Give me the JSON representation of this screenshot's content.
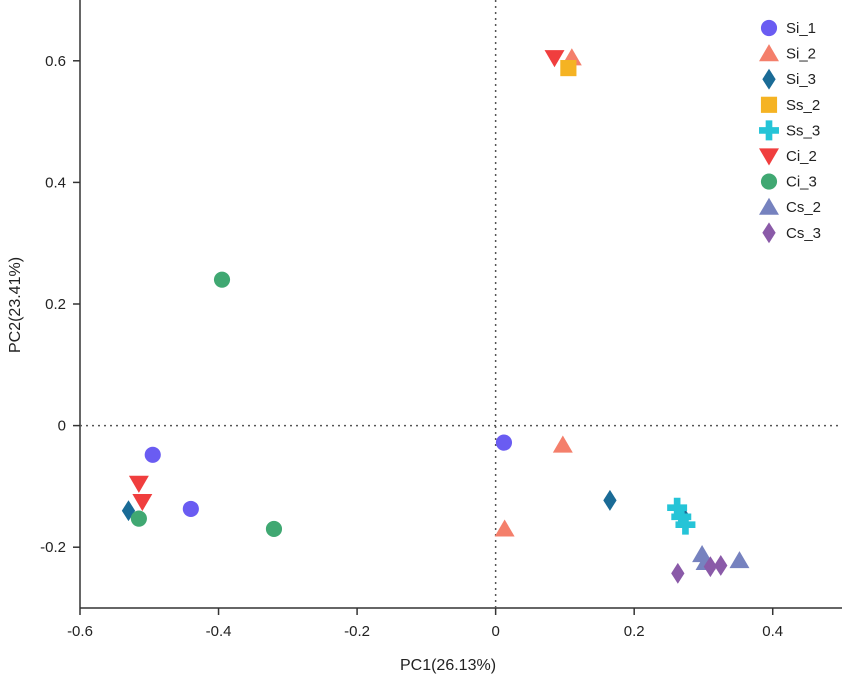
{
  "chart_data": {
    "type": "scatter",
    "xlabel": "PC1(26.13%)",
    "ylabel": "PC2(23.41%)",
    "xlim": [
      -0.6,
      0.5
    ],
    "ylim": [
      -0.3,
      0.7
    ],
    "x_ticks": [
      -0.6,
      -0.4,
      -0.2,
      0,
      0.2,
      0.4
    ],
    "y_ticks": [
      -0.2,
      0,
      0.2,
      0.4,
      0.6
    ],
    "x_tick_labels": [
      "-0.6",
      "-0.4",
      "-0.2",
      "0",
      "0.2",
      "0.4"
    ],
    "y_tick_labels": [
      "-0.2",
      "0",
      "0.2",
      "0.4",
      "0.6"
    ],
    "grid": false,
    "reference_lines": {
      "x": 0,
      "y": 0,
      "style": "dotted"
    },
    "legend_position": "top-right",
    "series": [
      {
        "name": "Si_1",
        "marker": "circle",
        "color": "#6a5cf2",
        "points": [
          [
            -0.495,
            -0.048
          ],
          [
            -0.44,
            -0.137
          ],
          [
            0.012,
            -0.028
          ]
        ]
      },
      {
        "name": "Si_2",
        "marker": "triangle-up",
        "color": "#f47f6b",
        "points": [
          [
            0.11,
            0.605
          ],
          [
            0.097,
            -0.032
          ],
          [
            0.013,
            -0.17
          ]
        ]
      },
      {
        "name": "Si_3",
        "marker": "diamond",
        "color": "#1a6b96",
        "points": [
          [
            -0.53,
            -0.14
          ],
          [
            0.165,
            -0.123
          ],
          [
            0.27,
            -0.148
          ]
        ]
      },
      {
        "name": "Ss_2",
        "marker": "square",
        "color": "#f5b323",
        "points": [
          [
            0.105,
            0.588
          ]
        ]
      },
      {
        "name": "Ss_3",
        "marker": "plus",
        "color": "#25c4d7",
        "points": [
          [
            0.262,
            -0.135
          ],
          [
            0.268,
            -0.15
          ],
          [
            0.274,
            -0.163
          ]
        ]
      },
      {
        "name": "Ci_2",
        "marker": "triangle-down",
        "color": "#f03e3e",
        "points": [
          [
            0.085,
            0.605
          ],
          [
            -0.515,
            -0.095
          ],
          [
            -0.51,
            -0.125
          ]
        ]
      },
      {
        "name": "Ci_3",
        "marker": "circle",
        "color": "#40a872",
        "points": [
          [
            -0.395,
            0.24
          ],
          [
            -0.32,
            -0.17
          ],
          [
            -0.515,
            -0.153
          ]
        ]
      },
      {
        "name": "Cs_2",
        "marker": "triangle-up",
        "color": "#7682bf",
        "points": [
          [
            0.298,
            -0.212
          ],
          [
            0.352,
            -0.222
          ],
          [
            0.303,
            -0.225
          ]
        ]
      },
      {
        "name": "Cs_3",
        "marker": "diamond",
        "color": "#8a5aa8",
        "points": [
          [
            0.263,
            -0.243
          ],
          [
            0.31,
            -0.232
          ],
          [
            0.325,
            -0.23
          ]
        ]
      }
    ]
  }
}
